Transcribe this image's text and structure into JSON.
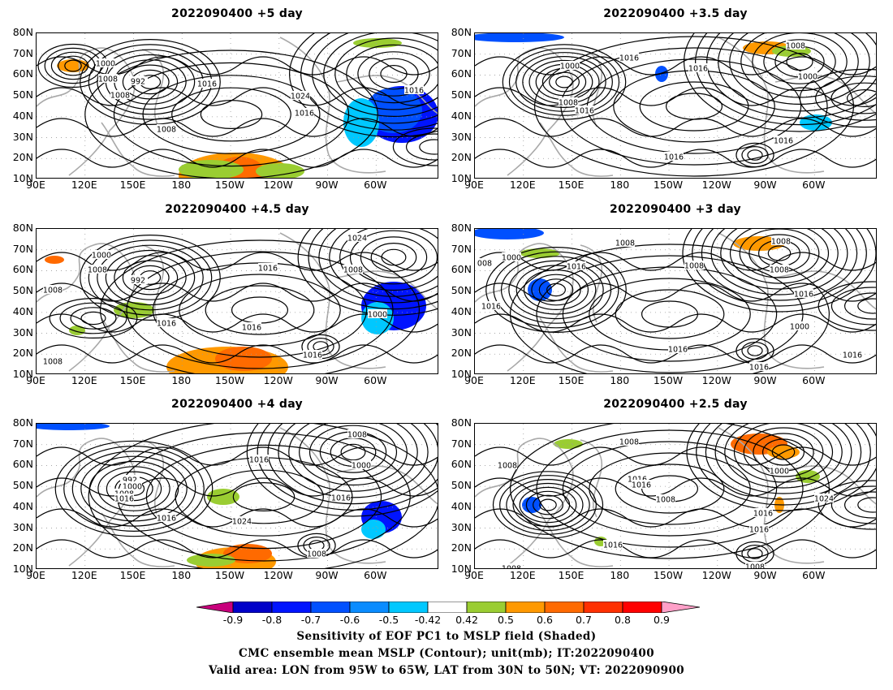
{
  "panels": [
    {
      "title": "2022090400  +5 day",
      "highs": [
        "1000",
        "1008",
        "992",
        "1016",
        "1024",
        "1016",
        "1016",
        "1008",
        "1008"
      ]
    },
    {
      "title": "2022090400  +3.5 day",
      "highs": [
        "1008",
        "1016",
        "1000",
        "1008",
        "1016",
        "1016",
        "1000",
        "1016",
        "1016"
      ]
    },
    {
      "title": "2022090400  +4.5 day",
      "highs": [
        "1000",
        "1008",
        "992",
        "1016",
        "1016",
        "1016",
        "1024",
        "1008",
        "1000",
        "1016",
        "1008",
        "1008"
      ]
    },
    {
      "title": "2022090400  +3 day",
      "highs": [
        "1008",
        "1000",
        "008",
        "1016",
        "1008",
        "1016",
        "1016",
        "1016",
        "1016",
        "1008",
        "1000",
        "1016",
        "1008"
      ]
    },
    {
      "title": "2022090400  +4 day",
      "highs": [
        "992",
        "1000",
        "1008",
        "1016",
        "1016",
        "1016",
        "1024",
        "1016",
        "1008",
        "1008",
        "1000"
      ]
    },
    {
      "title": "2022090400  +2.5 day",
      "highs": [
        "1008",
        "1008",
        "1016",
        "1016",
        "1008",
        "1000",
        "1024",
        "1016",
        "1016",
        "1016",
        "1008",
        "1008"
      ]
    }
  ],
  "lat_labels": [
    "80N",
    "70N",
    "60N",
    "50N",
    "40N",
    "30N",
    "20N",
    "10N"
  ],
  "lon_labels": [
    "90E",
    "120E",
    "150E",
    "180",
    "150W",
    "120W",
    "90W",
    "60W"
  ],
  "colorbar": {
    "labels": [
      "-0.9",
      "-0.8",
      "-0.7",
      "-0.6",
      "-0.5",
      "-0.42",
      "0.42",
      "0.5",
      "0.6",
      "0.7",
      "0.8",
      "0.9"
    ],
    "colors": [
      "#0000c8",
      "#0014ff",
      "#0050ff",
      "#0a8cff",
      "#00c8ff",
      "#ffffff",
      "#9acd32",
      "#ff9900",
      "#ff6a00",
      "#ff3000",
      "#ff0000"
    ],
    "low_end": "#c8007c",
    "high_end": "#ffa0c8"
  },
  "caption": {
    "line1": "Sensitivity of EOF PC1 to MSLP field (Shaded)",
    "line2": "CMC ensemble mean MSLP (Contour); unit(mb); IT:2022090400",
    "line3": "Valid area: LON from 95W to 65W, LAT from 30N to 50N; VT: 2022090900"
  }
}
